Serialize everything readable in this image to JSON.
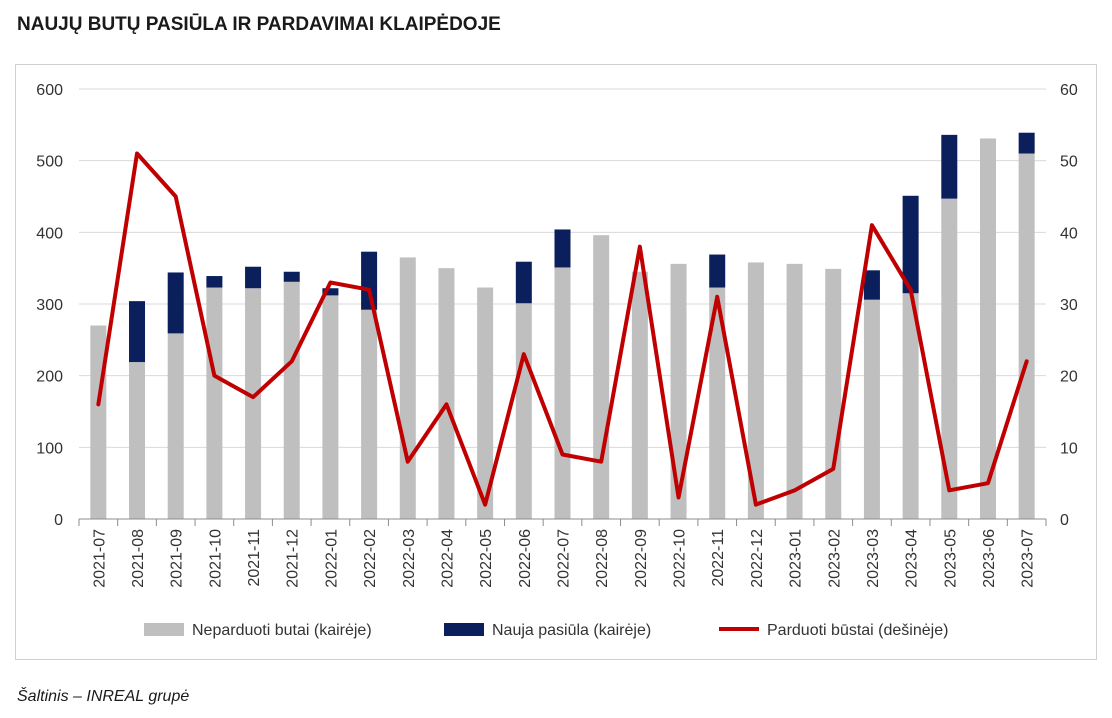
{
  "title": "NAUJŲ BUTŲ PASIŪLA IR PARDAVIMAI KLAIPĖDOJE",
  "source": "Šaltinis – INREAL grupė",
  "chart_data": {
    "type": "bar",
    "title": "NAUJŲ BUTŲ PASIŪLA IR PARDAVIMAI KLAIPĖDOJE",
    "xlabel": "",
    "ylabel": "",
    "y2label": "",
    "ylim": [
      0,
      600
    ],
    "y2lim": [
      0,
      60
    ],
    "yticks": [
      0,
      100,
      200,
      300,
      400,
      500,
      600
    ],
    "y2ticks": [
      0,
      10,
      20,
      30,
      40,
      50,
      60
    ],
    "grid": true,
    "legend_position": "bottom",
    "categories": [
      "2021-07",
      "2021-08",
      "2021-09",
      "2021-10",
      "2021-11",
      "2021-12",
      "2022-01",
      "2022-02",
      "2022-03",
      "2022-04",
      "2022-05",
      "2022-06",
      "2022-07",
      "2022-08",
      "2022-09",
      "2022-10",
      "2022-11",
      "2022-12",
      "2023-01",
      "2023-02",
      "2023-03",
      "2023-04",
      "2023-05",
      "2023-06",
      "2023-07"
    ],
    "series": [
      {
        "name": "Neparduoti butai (kairėje)",
        "type": "bar",
        "axis": "left",
        "color": "#bfbfbf",
        "values": [
          270,
          219,
          259,
          323,
          322,
          331,
          312,
          292,
          365,
          350,
          323,
          301,
          351,
          396,
          345,
          356,
          323,
          358,
          356,
          349,
          306,
          315,
          447,
          531,
          510
        ]
      },
      {
        "name": "Nauja pasiūla (kairėje)",
        "type": "bar-stacked",
        "axis": "left",
        "color": "#0a1f5c",
        "values": [
          0,
          85,
          85,
          16,
          30,
          14,
          10,
          81,
          0,
          0,
          0,
          58,
          53,
          0,
          0,
          0,
          46,
          0,
          0,
          0,
          41,
          136,
          89,
          0,
          29
        ]
      },
      {
        "name": "Parduoti būstai (dešinėje)",
        "type": "line",
        "axis": "right",
        "color": "#c00000",
        "values": [
          16,
          51,
          45,
          20,
          17,
          22,
          33,
          32,
          8,
          16,
          2,
          23,
          9,
          8,
          38,
          3,
          31,
          2,
          4,
          7,
          41,
          32,
          4,
          5,
          22
        ]
      }
    ]
  }
}
